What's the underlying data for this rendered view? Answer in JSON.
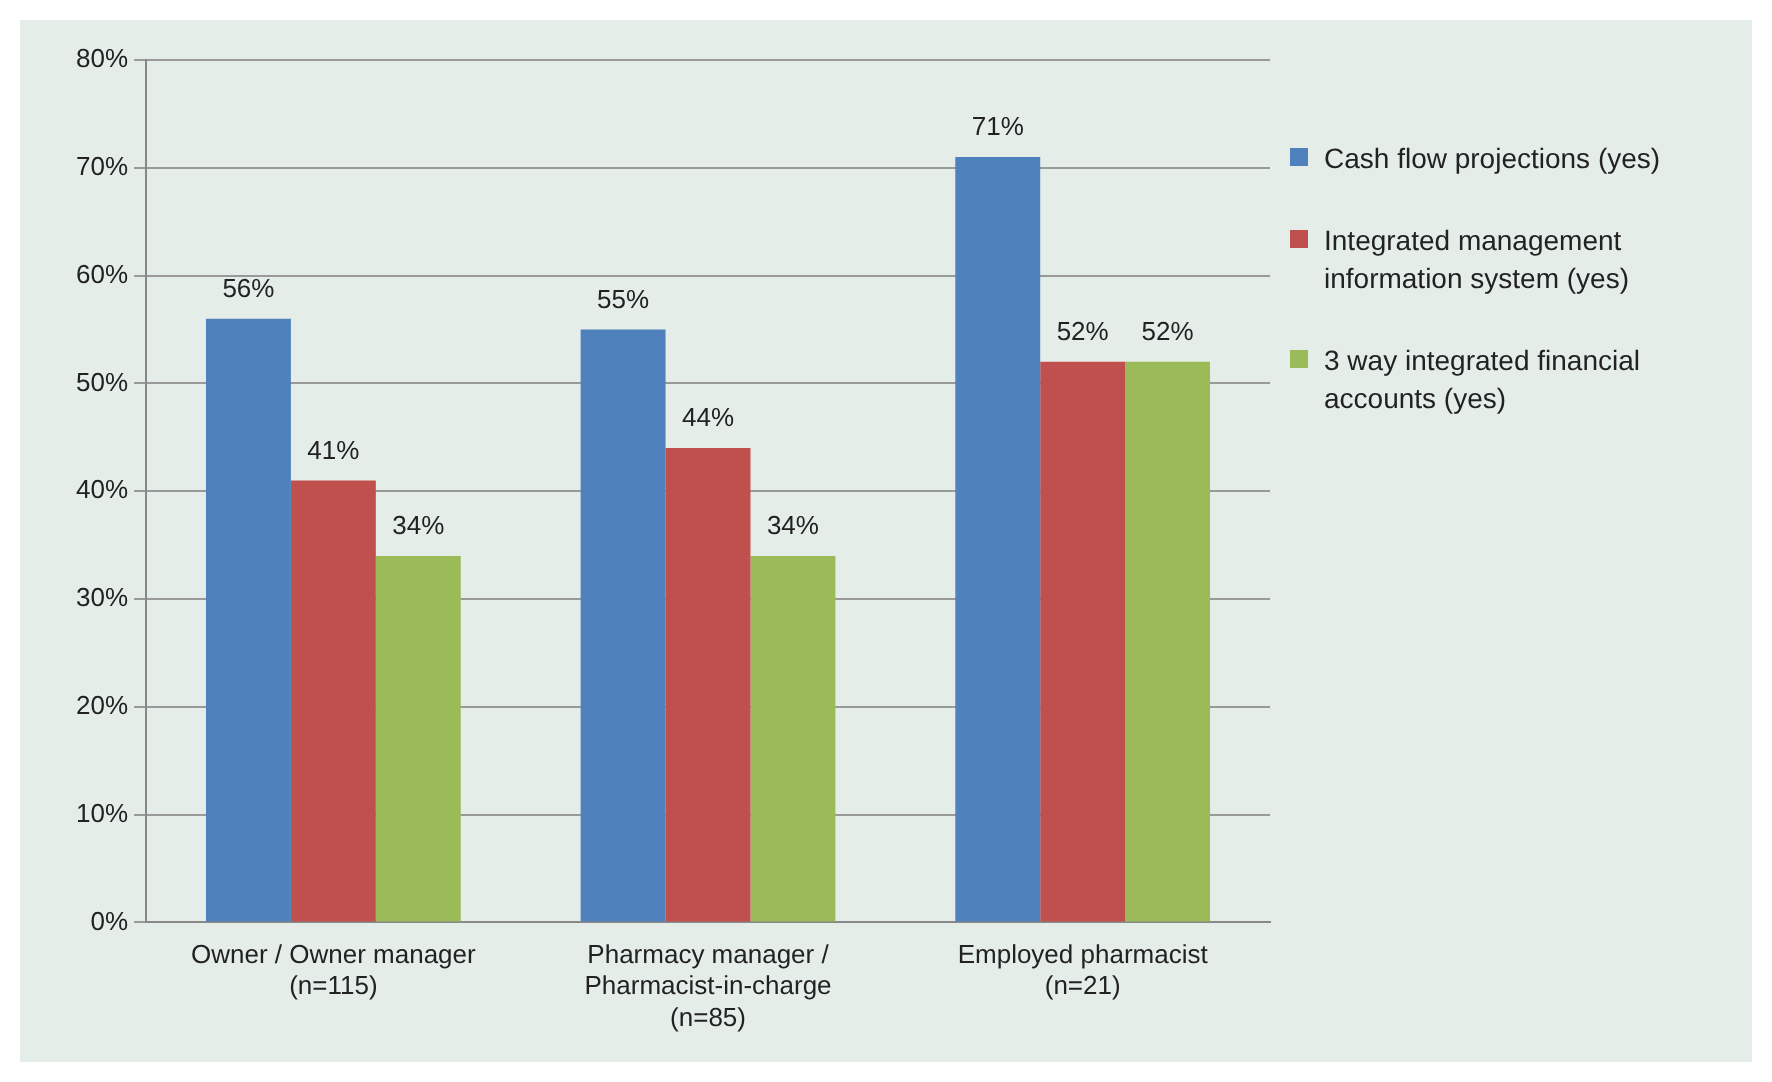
{
  "chart_data": {
    "type": "bar",
    "categories": [
      "Owner / Owner manager\n(n=115)",
      "Pharmacy manager /\nPharmacist-in-charge\n(n=85)",
      "Employed pharmacist\n(n=21)"
    ],
    "series": [
      {
        "name": "Cash flow projections (yes)",
        "color": "#4f81bd",
        "values": [
          56,
          55,
          71
        ],
        "value_labels": [
          "56%",
          "55%",
          "71%"
        ]
      },
      {
        "name": "Integrated management information system (yes)",
        "color": "#c0504d",
        "values": [
          41,
          44,
          52
        ],
        "value_labels": [
          "41%",
          "44%",
          "52%"
        ]
      },
      {
        "name": "3 way integrated financial accounts (yes)",
        "color": "#9bbb59",
        "values": [
          34,
          34,
          52
        ],
        "value_labels": [
          "34%",
          "34%",
          "52%"
        ]
      }
    ],
    "ylim": [
      0,
      80
    ],
    "yticks": [
      {
        "value": 0,
        "label": "0%"
      },
      {
        "value": 10,
        "label": "10%"
      },
      {
        "value": 20,
        "label": "20%"
      },
      {
        "value": 30,
        "label": "30%"
      },
      {
        "value": 40,
        "label": "40%"
      },
      {
        "value": 50,
        "label": "50%"
      },
      {
        "value": 60,
        "label": "60%"
      },
      {
        "value": 70,
        "label": "70%"
      },
      {
        "value": 80,
        "label": "80%"
      }
    ],
    "grid": "y",
    "legend": "right"
  }
}
